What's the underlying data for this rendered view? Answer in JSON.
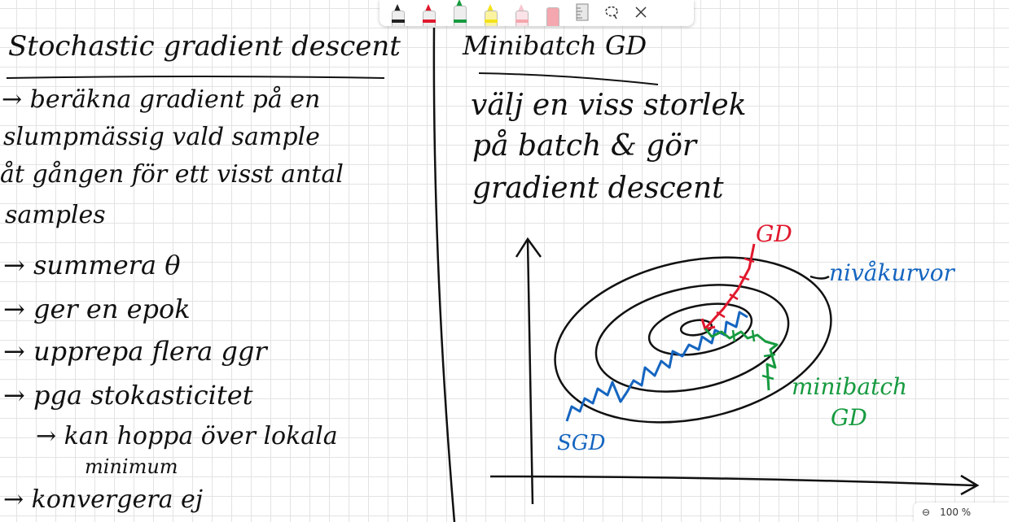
{
  "toolbar": {
    "tools": [
      {
        "name": "black-pen",
        "color": "#222222"
      },
      {
        "name": "red-pen",
        "color": "#e0182d"
      },
      {
        "name": "green-pen",
        "color": "#169a3f"
      },
      {
        "name": "yellow-highlighter",
        "color": "#f3e21b"
      },
      {
        "name": "pink-highlighter",
        "color": "#f7c6cf"
      },
      {
        "name": "eraser",
        "color": "#f4a7ae"
      }
    ],
    "icons": [
      "ruler-icon",
      "lasso-icon",
      "close-icon"
    ]
  },
  "left_column": {
    "title": "Stochastic gradient descent",
    "lines": [
      "→ beräkna gradient på en",
      "slumpmässig vald sample",
      "åt gången för ett visst antal",
      "samples",
      "→ summera θ",
      "→ ger en epok",
      "→ upprepa flera ggr",
      "→ pga stokasticitet",
      "→ kan hoppa över lokala",
      "minimum",
      "→ konvergera ej"
    ]
  },
  "right_column": {
    "title": "Minibatch GD",
    "lines": [
      "välj en viss storlek",
      "på batch & gör",
      "gradient descent"
    ]
  },
  "diagram": {
    "labels": {
      "gd": "GD",
      "contours": "nivåkurvor",
      "minibatch": "minibatch",
      "minibatch_gd": "GD",
      "sgd": "SGD"
    },
    "colors": {
      "ink": "#111111",
      "sgd": "#1565c0",
      "gd": "#e0182d",
      "minibatch": "#169a3f"
    }
  },
  "zoom": {
    "minus": "⊖",
    "level": "100 %"
  }
}
